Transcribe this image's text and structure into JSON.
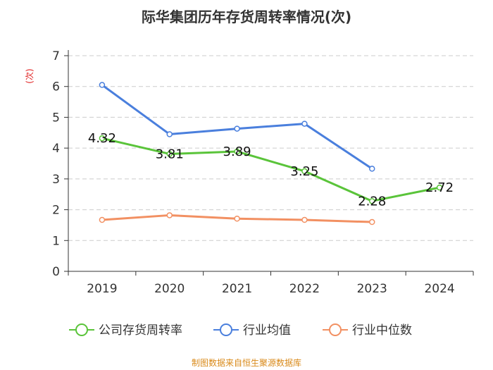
{
  "title": "际华集团历年存货周转率情况(次)",
  "source": "制图数据来自恒生聚源数据库",
  "colors": {
    "company": "#5ac43a",
    "industry_avg": "#4a7fdd",
    "industry_median": "#f29062",
    "ylabel": "#e02020",
    "axis": "#333333",
    "grid": "#cccccc"
  },
  "chart_data": {
    "type": "line",
    "title": "际华集团历年存货周转率情况(次)",
    "ylabel": "(次)",
    "xlabel": "",
    "categories": [
      "2019",
      "2020",
      "2021",
      "2022",
      "2023",
      "2024"
    ],
    "ylim": [
      0,
      7
    ],
    "yticks": [
      0,
      1,
      2,
      3,
      4,
      5,
      6,
      7
    ],
    "grid": true,
    "legend_position": "bottom",
    "series": [
      {
        "key": "company",
        "name": "公司存货周转率",
        "values": [
          4.32,
          3.81,
          3.89,
          3.25,
          2.28,
          2.72
        ],
        "labels": [
          "4.32",
          "3.81",
          "3.89",
          "3.25",
          "2.28",
          "2.72"
        ]
      },
      {
        "key": "industry_avg",
        "name": "行业均值",
        "values": [
          6.05,
          4.45,
          4.63,
          4.79,
          3.33,
          null
        ]
      },
      {
        "key": "industry_median",
        "name": "行业中位数",
        "values": [
          1.67,
          1.82,
          1.71,
          1.67,
          1.6,
          null
        ]
      }
    ]
  }
}
